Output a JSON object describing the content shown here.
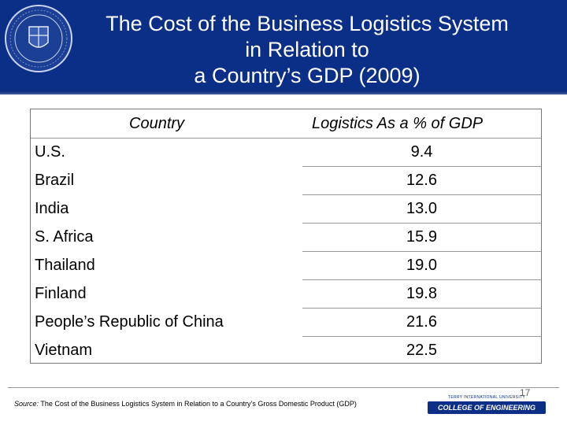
{
  "header": {
    "title_lines": [
      "The Cost of the Business Logistics System",
      "in Relation to",
      "a Country’s GDP (2009)"
    ]
  },
  "table": {
    "columns": [
      "Country",
      "Logistics As a % of GDP"
    ],
    "rows": [
      {
        "country": "U.S.",
        "value": "9.4"
      },
      {
        "country": "Brazil",
        "value": "12.6"
      },
      {
        "country": "India",
        "value": "13.0"
      },
      {
        "country": "S. Africa",
        "value": "15.9"
      },
      {
        "country": "Thailand",
        "value": "19.0"
      },
      {
        "country": "Finland",
        "value": "19.8"
      },
      {
        "country": "People’s Republic of China",
        "value": "21.6"
      },
      {
        "country": "Vietnam",
        "value": "22.5"
      }
    ]
  },
  "footer": {
    "source_label": "Source:",
    "source_text": "The Cost of the Business Logistics System in Relation to a Country’s Gross Domestic Product (GDP)",
    "page_number": "17",
    "logo_top_text": "TERRY INTERNATIONAL UNIVERSITY",
    "logo_text": "COLLEGE OF ENGINEERING"
  },
  "colors": {
    "header_bg": "#0b2f86",
    "title_text": "#ffffff"
  }
}
